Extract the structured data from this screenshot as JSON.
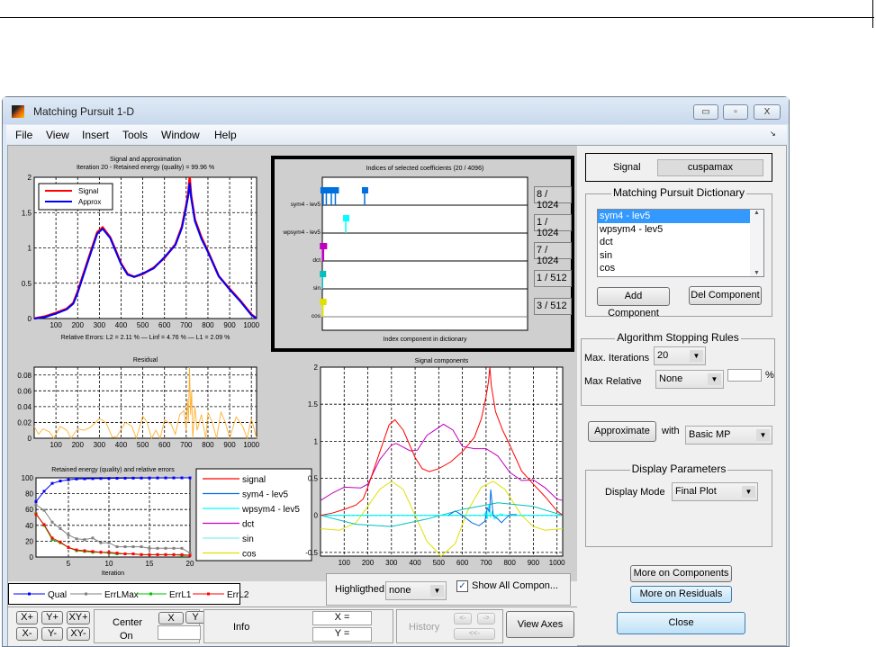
{
  "window": {
    "title": "Matching Pursuit 1-D",
    "minimize": "▭",
    "maximize": "▫",
    "close": "X"
  },
  "menu": [
    "File",
    "View",
    "Insert",
    "Tools",
    "Window",
    "Help"
  ],
  "colors": {
    "signal": "#ff0000",
    "approx": "#0000ff",
    "sym4": "#0070e0",
    "wpsym4": "#00ffff",
    "dct": "#c000c0",
    "sin": "#00c0c0",
    "cos": "#e0e000",
    "residual": "#ffb030",
    "qual": "#0000ff",
    "errlmax": "#808080",
    "errl1": "#00c000",
    "errl2": "#ff0000"
  },
  "approx_plot": {
    "title": "Signal and approximation",
    "subtitle": "Iteration 20 - Retained energy (quality) = 99.96 %",
    "footer": "Relative Errors:  L2 = 2.11 %  —  Linf = 4.76 %  —  L1 = 2.09 %",
    "legend": [
      "Signal",
      "Approx"
    ],
    "xlim": [
      0,
      1024
    ],
    "ylim": [
      0,
      2
    ],
    "xticks": [
      100,
      200,
      300,
      400,
      500,
      600,
      700,
      800,
      900,
      1000
    ],
    "yticks": [
      0,
      0.5,
      1,
      1.5,
      2
    ],
    "signal": [
      [
        0,
        0
      ],
      [
        50,
        0.03
      ],
      [
        100,
        0.08
      ],
      [
        150,
        0.14
      ],
      [
        180,
        0.22
      ],
      [
        200,
        0.38
      ],
      [
        250,
        0.85
      ],
      [
        290,
        1.22
      ],
      [
        315,
        1.29
      ],
      [
        350,
        1.15
      ],
      [
        400,
        0.78
      ],
      [
        430,
        0.63
      ],
      [
        460,
        0.59
      ],
      [
        500,
        0.63
      ],
      [
        550,
        0.72
      ],
      [
        600,
        0.86
      ],
      [
        650,
        1.05
      ],
      [
        680,
        1.3
      ],
      [
        700,
        1.6
      ],
      [
        710,
        1.8
      ],
      [
        716,
        2.0
      ],
      [
        722,
        1.75
      ],
      [
        740,
        1.4
      ],
      [
        770,
        1.15
      ],
      [
        800,
        0.95
      ],
      [
        850,
        0.6
      ],
      [
        900,
        0.42
      ],
      [
        950,
        0.25
      ],
      [
        1000,
        0.06
      ],
      [
        1024,
        0
      ]
    ],
    "approx": [
      [
        0,
        0
      ],
      [
        50,
        0.02
      ],
      [
        100,
        0.07
      ],
      [
        150,
        0.13
      ],
      [
        180,
        0.21
      ],
      [
        200,
        0.36
      ],
      [
        250,
        0.83
      ],
      [
        290,
        1.2
      ],
      [
        315,
        1.27
      ],
      [
        350,
        1.14
      ],
      [
        400,
        0.77
      ],
      [
        430,
        0.62
      ],
      [
        460,
        0.59
      ],
      [
        500,
        0.64
      ],
      [
        550,
        0.71
      ],
      [
        600,
        0.87
      ],
      [
        650,
        1.04
      ],
      [
        680,
        1.28
      ],
      [
        700,
        1.58
      ],
      [
        710,
        1.75
      ],
      [
        716,
        1.92
      ],
      [
        722,
        1.72
      ],
      [
        740,
        1.38
      ],
      [
        770,
        1.13
      ],
      [
        800,
        0.94
      ],
      [
        850,
        0.6
      ],
      [
        900,
        0.41
      ],
      [
        950,
        0.24
      ],
      [
        1000,
        0.05
      ],
      [
        1024,
        0
      ]
    ]
  },
  "indices_plot": {
    "title": "Indices of selected coefficients  (20 / 4096)",
    "xlabel": "Index component in dictionary",
    "xlim": [
      0,
      1024
    ],
    "rows": [
      {
        "label": "sym4 - lev5",
        "count": "8 / 1024",
        "stems": [
          4,
          20,
          45,
          65,
          211
        ]
      },
      {
        "label": "wpsym4 - lev5",
        "count": "1 / 1024",
        "stems": [
          117
        ]
      },
      {
        "label": "dct",
        "count": "7 / 1024",
        "stems": [
          1,
          3,
          6
        ]
      },
      {
        "label": "sin",
        "count": "1 / 512",
        "stems": [
          1
        ]
      },
      {
        "label": "cos",
        "count": "3 / 512",
        "stems": [
          1,
          3
        ]
      }
    ]
  },
  "residual_plot": {
    "title": "Residual",
    "xlim": [
      0,
      1024
    ],
    "ylim": [
      0,
      0.09
    ],
    "xticks": [
      100,
      200,
      300,
      400,
      500,
      600,
      700,
      800,
      900,
      1000
    ],
    "yticks": [
      0,
      0.02,
      0.04,
      0.06,
      0.08
    ],
    "values": [
      [
        0,
        0.015
      ],
      [
        20,
        0.005
      ],
      [
        40,
        0.012
      ],
      [
        70,
        0.008
      ],
      [
        90,
        0.0
      ],
      [
        120,
        0.015
      ],
      [
        150,
        0.01
      ],
      [
        170,
        0.0
      ],
      [
        200,
        0.012
      ],
      [
        230,
        0.01
      ],
      [
        260,
        0.014
      ],
      [
        300,
        0.025
      ],
      [
        330,
        0.02
      ],
      [
        360,
        0.001
      ],
      [
        380,
        0.002
      ],
      [
        420,
        0.02
      ],
      [
        450,
        0.015
      ],
      [
        470,
        0
      ],
      [
        500,
        0.028
      ],
      [
        520,
        0.02
      ],
      [
        540,
        0
      ],
      [
        560,
        0.01
      ],
      [
        580,
        0.0
      ],
      [
        600,
        0.023
      ],
      [
        630,
        0.018
      ],
      [
        650,
        0.005
      ],
      [
        670,
        0.03
      ],
      [
        690,
        0.035
      ],
      [
        700,
        0.01
      ],
      [
        705,
        0.05
      ],
      [
        710,
        0.02
      ],
      [
        715,
        0.09
      ],
      [
        720,
        0.03
      ],
      [
        725,
        0.06
      ],
      [
        730,
        0.0
      ],
      [
        740,
        0.04
      ],
      [
        750,
        0.01
      ],
      [
        770,
        0.03
      ],
      [
        790,
        0.0
      ],
      [
        800,
        0.033
      ],
      [
        820,
        0.02
      ],
      [
        840,
        0.0
      ],
      [
        860,
        0.033
      ],
      [
        880,
        0.02
      ],
      [
        900,
        0.0
      ],
      [
        930,
        0.027
      ],
      [
        960,
        0.015
      ],
      [
        980,
        0.0
      ],
      [
        1000,
        0.025
      ],
      [
        1024,
        0.0
      ]
    ]
  },
  "energy_plot": {
    "title": "Retained energy (quality) and relative errors",
    "xlabel": "Iteration",
    "xlim": [
      1,
      20
    ],
    "ylim": [
      0,
      100
    ],
    "xticks": [
      5,
      10,
      15,
      20
    ],
    "yticks": [
      0,
      20,
      40,
      60,
      80,
      100
    ],
    "series": [
      {
        "name": "Qual",
        "values": [
          70,
          83,
          93,
          96,
          97.5,
          98.5,
          98.8,
          99,
          99.2,
          99.3,
          99.4,
          99.5,
          99.6,
          99.7,
          99.8,
          99.85,
          99.9,
          99.9,
          99.95,
          99.96
        ]
      },
      {
        "name": "ErrLMax",
        "values": [
          66,
          59,
          44,
          36,
          28,
          23,
          22,
          24,
          18,
          18,
          13,
          13,
          13,
          13,
          11,
          11,
          11,
          11,
          11,
          5
        ]
      },
      {
        "name": "ErrL1",
        "values": [
          55,
          40,
          22,
          18,
          12,
          8,
          7,
          6,
          6,
          5,
          4,
          4,
          4,
          3,
          3,
          3,
          3,
          3,
          2,
          2.09
        ]
      },
      {
        "name": "ErrL2",
        "values": [
          54,
          41,
          24,
          19,
          12,
          9,
          8,
          7,
          6,
          6,
          5,
          4,
          4,
          3,
          3,
          3,
          3,
          3,
          3,
          2.11
        ]
      }
    ]
  },
  "components_legend": [
    "signal",
    "sym4 - lev5",
    "wpsym4 - lev5",
    "dct",
    "sin",
    "cos"
  ],
  "components_plot": {
    "title": "Signal components",
    "xlim": [
      0,
      1024
    ],
    "ylim": [
      -0.55,
      2
    ],
    "xticks": [
      100,
      200,
      300,
      400,
      500,
      600,
      700,
      800,
      900,
      1000
    ],
    "yticks": [
      -0.5,
      0,
      0.5,
      1,
      1.5,
      2
    ],
    "dct": [
      [
        0,
        0.2
      ],
      [
        50,
        0.3
      ],
      [
        100,
        0.38
      ],
      [
        170,
        0.37
      ],
      [
        200,
        0.42
      ],
      [
        250,
        0.75
      ],
      [
        300,
        0.95
      ],
      [
        320,
        0.97
      ],
      [
        380,
        0.87
      ],
      [
        410,
        0.88
      ],
      [
        450,
        1.08
      ],
      [
        520,
        1.23
      ],
      [
        560,
        1.15
      ],
      [
        600,
        0.93
      ],
      [
        650,
        0.9
      ],
      [
        700,
        0.9
      ],
      [
        750,
        0.8
      ],
      [
        800,
        0.58
      ],
      [
        850,
        0.47
      ],
      [
        900,
        0.48
      ],
      [
        950,
        0.37
      ],
      [
        1000,
        0.22
      ],
      [
        1024,
        0.2
      ]
    ],
    "cos": [
      [
        0,
        -0.18
      ],
      [
        80,
        -0.2
      ],
      [
        150,
        -0.1
      ],
      [
        200,
        0.12
      ],
      [
        250,
        0.35
      ],
      [
        300,
        0.46
      ],
      [
        350,
        0.35
      ],
      [
        400,
        0.0
      ],
      [
        450,
        -0.35
      ],
      [
        510,
        -0.55
      ],
      [
        570,
        -0.38
      ],
      [
        620,
        0.05
      ],
      [
        680,
        0.38
      ],
      [
        730,
        0.46
      ],
      [
        780,
        0.35
      ],
      [
        850,
        0.0
      ],
      [
        900,
        -0.15
      ],
      [
        950,
        -0.2
      ],
      [
        1024,
        -0.18
      ]
    ],
    "sin": [
      [
        0,
        0
      ],
      [
        150,
        -0.12
      ],
      [
        300,
        -0.15
      ],
      [
        450,
        -0.05
      ],
      [
        600,
        0.08
      ],
      [
        750,
        0.17
      ],
      [
        900,
        0.12
      ],
      [
        1024,
        0
      ]
    ],
    "wpsym4": [
      [
        0,
        0
      ],
      [
        690,
        0
      ],
      [
        700,
        0.05
      ],
      [
        705,
        -0.05
      ],
      [
        712,
        0.15
      ],
      [
        718,
        -0.03
      ],
      [
        725,
        0.05
      ],
      [
        735,
        -0.05
      ],
      [
        760,
        0.02
      ],
      [
        780,
        0
      ],
      [
        1024,
        0
      ]
    ],
    "sym4": [
      [
        540,
        0
      ],
      [
        570,
        0.06
      ],
      [
        600,
        0.0
      ],
      [
        640,
        -0.1
      ],
      [
        670,
        -0.14
      ],
      [
        695,
        -0.08
      ],
      [
        705,
        0.1
      ],
      [
        715,
        0.05
      ],
      [
        720,
        0.35
      ],
      [
        730,
        0.0
      ],
      [
        750,
        -0.05
      ],
      [
        765,
        -0.1
      ],
      [
        780,
        -0.05
      ],
      [
        800,
        0.01
      ],
      [
        830,
        0.01
      ]
    ]
  },
  "bottom_legend": [
    "Qual",
    "ErrLMax",
    "ErrL1",
    "ErrL2"
  ],
  "highlight": {
    "label": "Highligthed",
    "value": "none",
    "show_all": "Show All Compon...",
    "checked": true
  },
  "zoom_buttons": [
    "X+",
    "Y+",
    "XY+",
    "X-",
    "Y-",
    "XY-"
  ],
  "center": {
    "label": "Center",
    "state": "On",
    "x": "X",
    "y": "Y"
  },
  "info": {
    "label": "Info",
    "x": "X =",
    "y": "Y ="
  },
  "history": {
    "label": "History",
    "back": "<-",
    "forward": "->",
    "reset": "<<-"
  },
  "view_axes": "View Axes",
  "right": {
    "signal_label": "Signal",
    "signal_value": "cuspamax",
    "dictionary_title": "Matching Pursuit Dictionary",
    "dictionary_items": [
      "sym4 - lev5",
      "wpsym4 - lev5",
      "dct",
      "sin",
      "cos"
    ],
    "dictionary_selected": 0,
    "add": "Add Component",
    "del": "Del Component",
    "stopping_title": "Algorithm Stopping Rules",
    "max_iter_label": "Max. Iterations",
    "max_iter_value": "20",
    "max_rel_label": "Max Relative",
    "max_rel_value": "None",
    "percent": "%",
    "approximate": "Approximate",
    "with": "with",
    "method": "Basic MP",
    "display_title": "Display Parameters",
    "display_mode_label": "Display Mode",
    "display_mode": "Final Plot",
    "more_components": "More on Components",
    "more_residuals": "More on Residuals",
    "close": "Close"
  }
}
